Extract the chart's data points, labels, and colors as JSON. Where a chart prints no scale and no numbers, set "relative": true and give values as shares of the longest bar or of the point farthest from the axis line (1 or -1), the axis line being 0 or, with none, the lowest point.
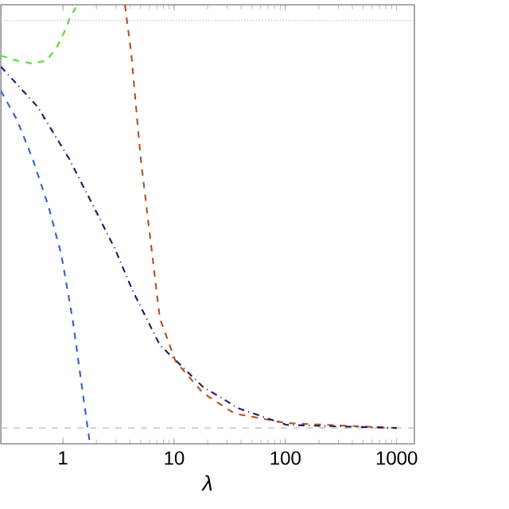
{
  "chart_data": {
    "type": "line",
    "relative": true,
    "xlabel": "λ",
    "log": "x",
    "xlim": [
      0.277,
      1445
    ],
    "xticks": [
      1,
      10,
      100,
      1000
    ],
    "line_style": "dashed",
    "marker": "none",
    "series": [
      {
        "color": "#3a5fcd",
        "x": [
          0.277,
          0.385,
          0.535,
          0.744,
          0.968,
          1.22,
          1.43,
          1.75
        ],
        "values": [
          0.804,
          0.739,
          0.649,
          0.54,
          0.431,
          0.286,
          0.159,
          0
        ]
      },
      {
        "color": "#55dd33",
        "x": [
          0.277,
          0.385,
          0.535,
          0.713,
          0.877,
          1.03,
          1.18,
          1.35
        ],
        "values": [
          0.884,
          0.873,
          0.866,
          0.873,
          0.902,
          0.938,
          0.975,
          1.0
        ]
      },
      {
        "color": "#b5541f",
        "x": [
          3.61,
          4.11,
          5.01,
          6.11,
          7.44,
          10.3,
          18.1,
          34.9,
          103,
          1000
        ],
        "values": [
          1.0,
          0.891,
          0.649,
          0.467,
          0.286,
          0.188,
          0.116,
          0.069,
          0.047,
          0.036
        ]
      },
      {
        "color": "#2b1a66",
        "line_style": "dashdotted",
        "x": [
          0.277,
          0.591,
          1.14,
          1.99,
          2.96,
          4.25,
          7.44,
          18.1,
          38.5,
          103,
          1000
        ],
        "values": [
          0.859,
          0.768,
          0.649,
          0.529,
          0.442,
          0.348,
          0.225,
          0.13,
          0.08,
          0.043,
          0.036
        ]
      }
    ],
    "ref_lines": [
      {
        "axis": "y",
        "value": 0.964,
        "color": "#aaaaaa",
        "line_style": "dotted"
      },
      {
        "axis": "y",
        "value": 0.036,
        "color": "#bbbbbb",
        "line_style": "dashed"
      }
    ]
  }
}
